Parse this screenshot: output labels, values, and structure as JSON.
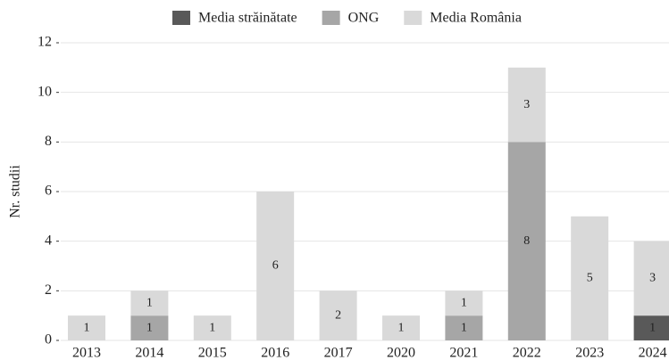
{
  "chart_data": {
    "type": "stacked_bar",
    "categories": [
      "2013",
      "2014",
      "2015",
      "2016",
      "2017",
      "2020",
      "2021",
      "2022",
      "2023",
      "2024"
    ],
    "series": [
      {
        "name": "Media străinătate",
        "color": "#595959",
        "values": [
          0,
          0,
          0,
          0,
          0,
          0,
          0,
          0,
          0,
          1
        ]
      },
      {
        "name": "ONG",
        "color": "#a6a6a6",
        "values": [
          0,
          1,
          0,
          0,
          0,
          0,
          1,
          8,
          0,
          0
        ]
      },
      {
        "name": "Media România",
        "color": "#d9d9d9",
        "values": [
          1,
          1,
          1,
          6,
          2,
          1,
          1,
          3,
          5,
          3
        ]
      }
    ],
    "y_label": "Nr. studii",
    "ylim": [
      0,
      12
    ],
    "yticks": [
      0,
      2,
      4,
      6,
      8,
      10,
      12
    ],
    "grid": true,
    "legend": "top"
  }
}
